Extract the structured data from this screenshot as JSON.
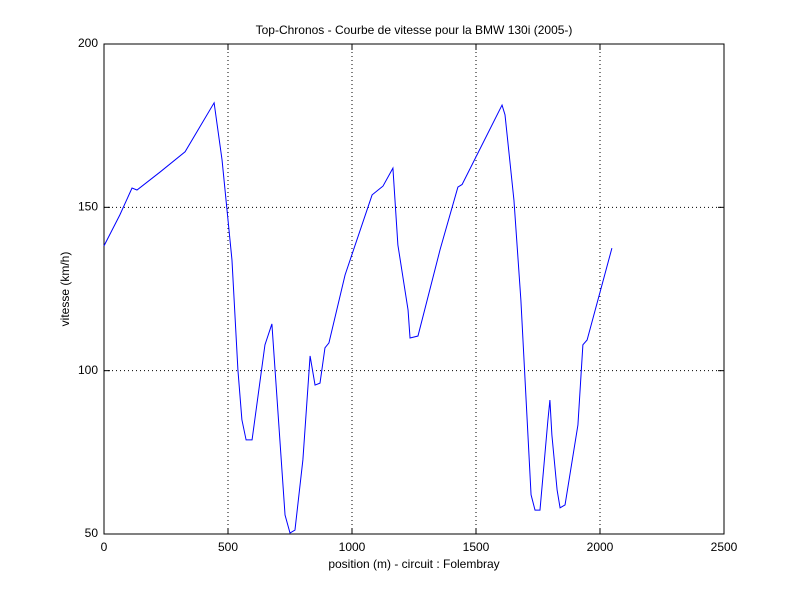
{
  "chart_data": {
    "type": "line",
    "title": "Top-Chronos - Courbe de vitesse pour la BMW 130i (2005-)",
    "x_label": "position (m) - circuit : Folembray",
    "y_label": "vitesse (km/h)",
    "x": [
      0,
      64,
      113,
      133,
      226,
      327,
      444,
      476,
      516,
      540,
      556,
      573,
      597,
      649,
      677,
      730,
      750,
      770,
      802,
      831,
      851,
      871,
      891,
      907,
      972,
      1081,
      1125,
      1165,
      1185,
      1226,
      1234,
      1266,
      1355,
      1427,
      1444,
      1605,
      1617,
      1653,
      1681,
      1722,
      1738,
      1758,
      1790,
      1798,
      1806,
      1827,
      1839,
      1859,
      1911,
      1931,
      1948,
      2048
    ],
    "series": [
      {
        "name": "vitesse",
        "color": "#0000ff",
        "values": [
          138.2,
          147.7,
          155.9,
          155.3,
          160.8,
          167,
          182,
          164.5,
          133.9,
          100.2,
          85,
          78.8,
          78.8,
          107.9,
          114.3,
          55.8,
          50.3,
          51.2,
          72.7,
          104.5,
          95.6,
          96.2,
          107,
          108.5,
          129.3,
          153.8,
          156.5,
          162,
          138.5,
          118.6,
          110,
          110.6,
          137,
          156.2,
          157,
          181.3,
          178.3,
          152.2,
          121.6,
          62,
          57.3,
          57.3,
          84.9,
          91,
          80.3,
          63.5,
          58,
          58.9,
          83.4,
          107.9,
          109.4,
          137.5
        ]
      }
    ],
    "xlim": [
      0,
      2500
    ],
    "xticks": [
      0,
      500,
      1000,
      1500,
      2000,
      2500
    ],
    "ylim": [
      50,
      200
    ],
    "yticks": [
      50,
      100,
      150,
      200
    ],
    "grid": true
  }
}
